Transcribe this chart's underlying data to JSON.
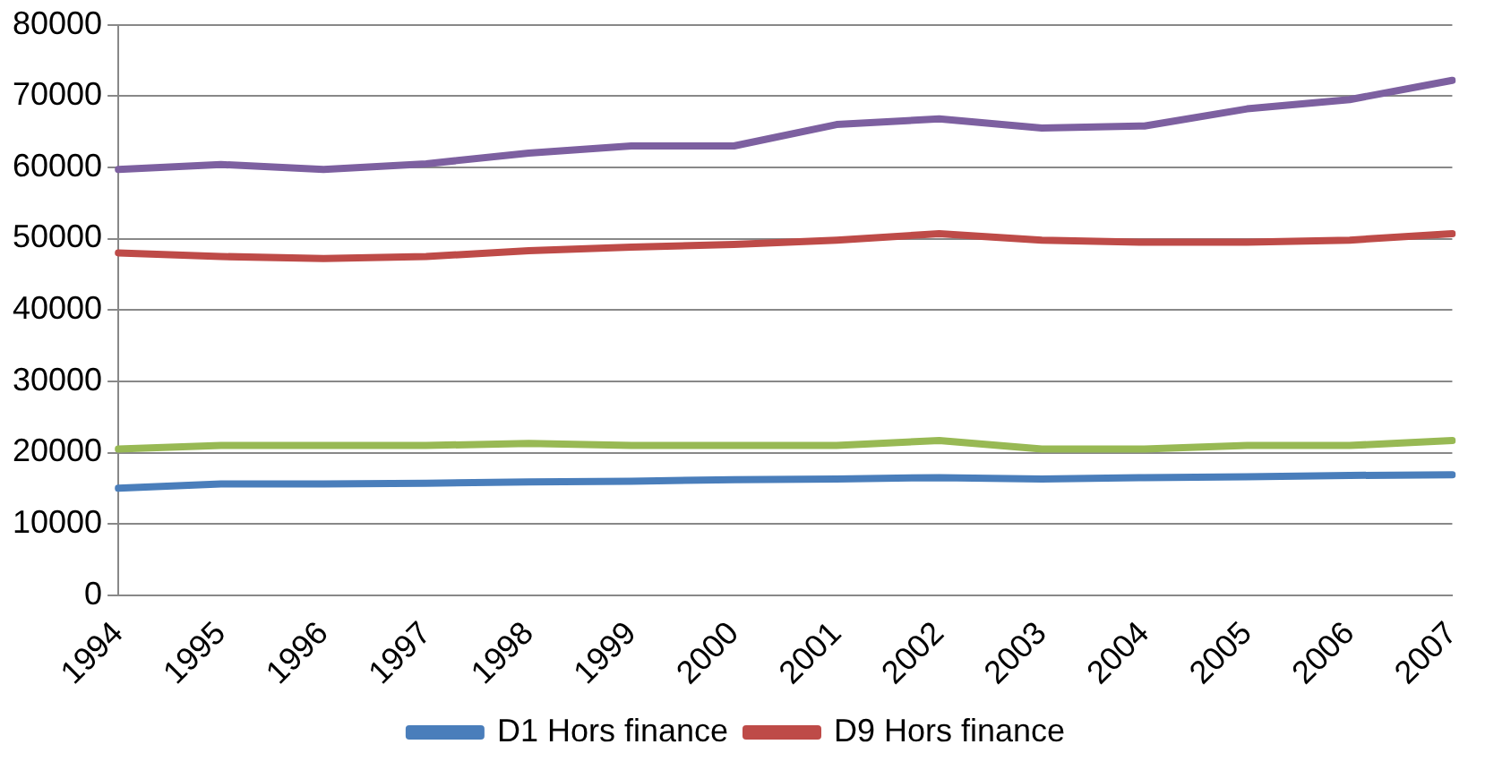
{
  "chart_data": {
    "type": "line",
    "categories": [
      "1994",
      "1995",
      "1996",
      "1997",
      "1998",
      "1999",
      "2000",
      "2001",
      "2002",
      "2003",
      "2004",
      "2005",
      "2006",
      "2007"
    ],
    "series": [
      {
        "name": "D1 Hors finance",
        "color": "#4a7ebb",
        "values": [
          15000,
          15600,
          15600,
          15700,
          15900,
          16000,
          16200,
          16300,
          16500,
          16300,
          16500,
          16600,
          16800,
          16900
        ]
      },
      {
        "name": "D9 Hors finance",
        "color": "#be4b48",
        "values": [
          48000,
          47500,
          47200,
          47500,
          48300,
          48800,
          49200,
          49800,
          50700,
          49800,
          49500,
          49500,
          49800,
          50700
        ]
      },
      {
        "color": "#98b954",
        "values": [
          20500,
          21000,
          21000,
          21000,
          21300,
          21000,
          21000,
          21000,
          21700,
          20500,
          20500,
          21000,
          21000,
          21700
        ]
      },
      {
        "color": "#7d60a0",
        "values": [
          59700,
          60400,
          59700,
          60500,
          62000,
          63000,
          63000,
          66000,
          66800,
          65500,
          65800,
          68200,
          69500,
          72200
        ]
      }
    ],
    "ylim": [
      0,
      80000
    ],
    "yticks": [
      0,
      10000,
      20000,
      30000,
      40000,
      50000,
      60000,
      70000,
      80000
    ],
    "grid": "y",
    "legend": "bottom",
    "marker": "none",
    "line_style": "solid"
  }
}
